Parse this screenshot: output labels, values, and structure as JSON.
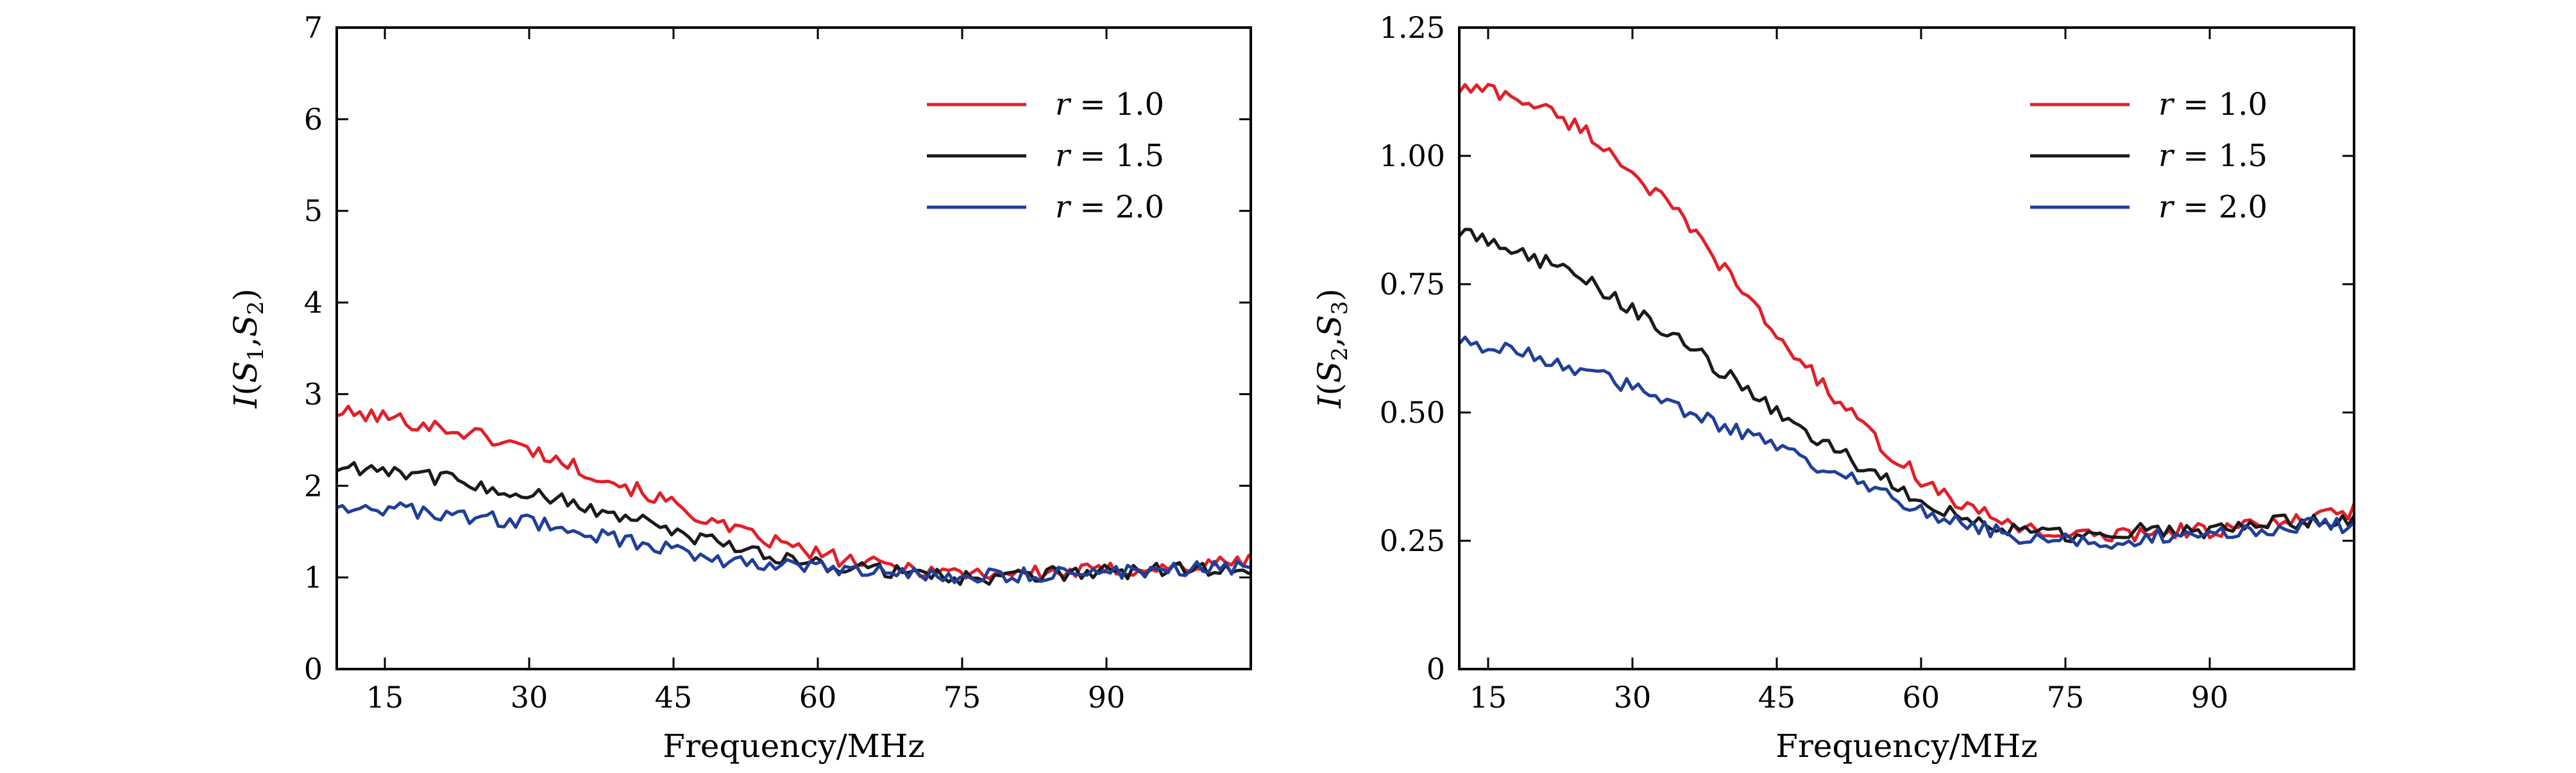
{
  "chart_data": [
    {
      "type": "line",
      "xlabel": "Frequency/MHz",
      "ylabel": "I(S1,S2)",
      "ylabel_parts": {
        "base": "I(",
        "s_a": "S",
        "sub_a": "1",
        "comma": ",",
        "s_b": "S",
        "sub_b": "2",
        "close": ")"
      },
      "xlim": [
        10,
        105
      ],
      "ylim": [
        0,
        7
      ],
      "xticks": [
        15,
        30,
        45,
        60,
        75,
        90
      ],
      "xtick_labels": [
        "15",
        "30",
        "45",
        "60",
        "75",
        "90"
      ],
      "yticks": [
        0,
        1,
        2,
        3,
        4,
        5,
        6,
        7
      ],
      "ytick_labels": [
        "0",
        "1",
        "2",
        "3",
        "4",
        "5",
        "6",
        "7"
      ],
      "grid": false,
      "legend_placement": "top-right",
      "legend": [
        {
          "var": "r",
          "eq": " = 1.0"
        },
        {
          "var": "r",
          "eq": " = 1.5"
        },
        {
          "var": "r",
          "eq": " = 2.0"
        }
      ],
      "series": [
        {
          "name": "r = 1.0",
          "color": "#e0202a",
          "x": [
            10,
            15,
            20,
            25,
            30,
            35,
            40,
            45,
            50,
            55,
            60,
            65,
            70,
            75,
            80,
            85,
            90,
            95,
            100,
            105
          ],
          "y": [
            2.8,
            2.75,
            2.65,
            2.55,
            2.4,
            2.2,
            2.0,
            1.8,
            1.55,
            1.4,
            1.25,
            1.15,
            1.1,
            1.05,
            1.05,
            1.05,
            1.08,
            1.1,
            1.12,
            1.2
          ]
        },
        {
          "name": "r = 1.5",
          "color": "#1a1a1a",
          "x": [
            10,
            15,
            20,
            25,
            30,
            35,
            40,
            45,
            50,
            55,
            60,
            65,
            70,
            75,
            80,
            85,
            90,
            95,
            100,
            105
          ],
          "y": [
            2.2,
            2.2,
            2.1,
            2.0,
            1.9,
            1.8,
            1.65,
            1.5,
            1.35,
            1.25,
            1.15,
            1.1,
            1.05,
            1.0,
            1.0,
            1.05,
            1.05,
            1.08,
            1.1,
            1.1
          ]
        },
        {
          "name": "r = 2.0",
          "color": "#1f3f9a",
          "x": [
            10,
            15,
            20,
            25,
            30,
            35,
            40,
            45,
            50,
            55,
            60,
            65,
            70,
            75,
            80,
            85,
            90,
            95,
            100,
            105
          ],
          "y": [
            1.8,
            1.75,
            1.7,
            1.65,
            1.6,
            1.5,
            1.4,
            1.3,
            1.2,
            1.15,
            1.1,
            1.05,
            1.05,
            1.0,
            1.02,
            1.05,
            1.05,
            1.08,
            1.1,
            1.1
          ]
        }
      ]
    },
    {
      "type": "line",
      "xlabel": "Frequency/MHz",
      "ylabel": "I(S2,S3)",
      "ylabel_parts": {
        "base": "I(",
        "s_a": "S",
        "sub_a": "2",
        "comma": ",",
        "s_b": "S",
        "sub_b": "3",
        "close": ")"
      },
      "xlim": [
        12,
        105
      ],
      "ylim": [
        0,
        1.25
      ],
      "xticks": [
        15,
        30,
        45,
        60,
        75,
        90
      ],
      "xtick_labels": [
        "15",
        "30",
        "45",
        "60",
        "75",
        "90"
      ],
      "yticks": [
        0,
        0.25,
        0.5,
        0.75,
        1.0,
        1.25
      ],
      "ytick_labels": [
        "0",
        "0.25",
        "0.50",
        "0.75",
        "1.00",
        "1.25"
      ],
      "grid": false,
      "legend_placement": "top-right",
      "legend": [
        {
          "var": "r",
          "eq": " = 1.0"
        },
        {
          "var": "r",
          "eq": " = 1.5"
        },
        {
          "var": "r",
          "eq": " = 2.0"
        }
      ],
      "series": [
        {
          "name": "r = 1.0",
          "color": "#e0202a",
          "x": [
            12,
            15,
            20,
            25,
            30,
            35,
            40,
            45,
            50,
            55,
            60,
            65,
            70,
            75,
            80,
            85,
            90,
            95,
            100,
            105
          ],
          "y": [
            1.13,
            1.13,
            1.1,
            1.05,
            0.97,
            0.88,
            0.77,
            0.65,
            0.55,
            0.45,
            0.37,
            0.31,
            0.28,
            0.26,
            0.26,
            0.27,
            0.27,
            0.28,
            0.29,
            0.31
          ]
        },
        {
          "name": "r = 1.5",
          "color": "#1a1a1a",
          "x": [
            12,
            15,
            20,
            25,
            30,
            35,
            40,
            45,
            50,
            55,
            60,
            65,
            70,
            75,
            80,
            85,
            90,
            95,
            100,
            105
          ],
          "y": [
            0.85,
            0.84,
            0.8,
            0.76,
            0.7,
            0.64,
            0.57,
            0.5,
            0.44,
            0.38,
            0.33,
            0.29,
            0.27,
            0.26,
            0.27,
            0.27,
            0.27,
            0.28,
            0.29,
            0.29
          ]
        },
        {
          "name": "r = 2.0",
          "color": "#1f3f9a",
          "x": [
            12,
            15,
            20,
            25,
            30,
            35,
            40,
            45,
            50,
            55,
            60,
            65,
            70,
            75,
            80,
            85,
            90,
            95,
            100,
            105
          ],
          "y": [
            0.64,
            0.63,
            0.61,
            0.58,
            0.55,
            0.51,
            0.47,
            0.43,
            0.39,
            0.35,
            0.31,
            0.28,
            0.26,
            0.25,
            0.25,
            0.26,
            0.27,
            0.27,
            0.28,
            0.28
          ]
        }
      ]
    }
  ]
}
